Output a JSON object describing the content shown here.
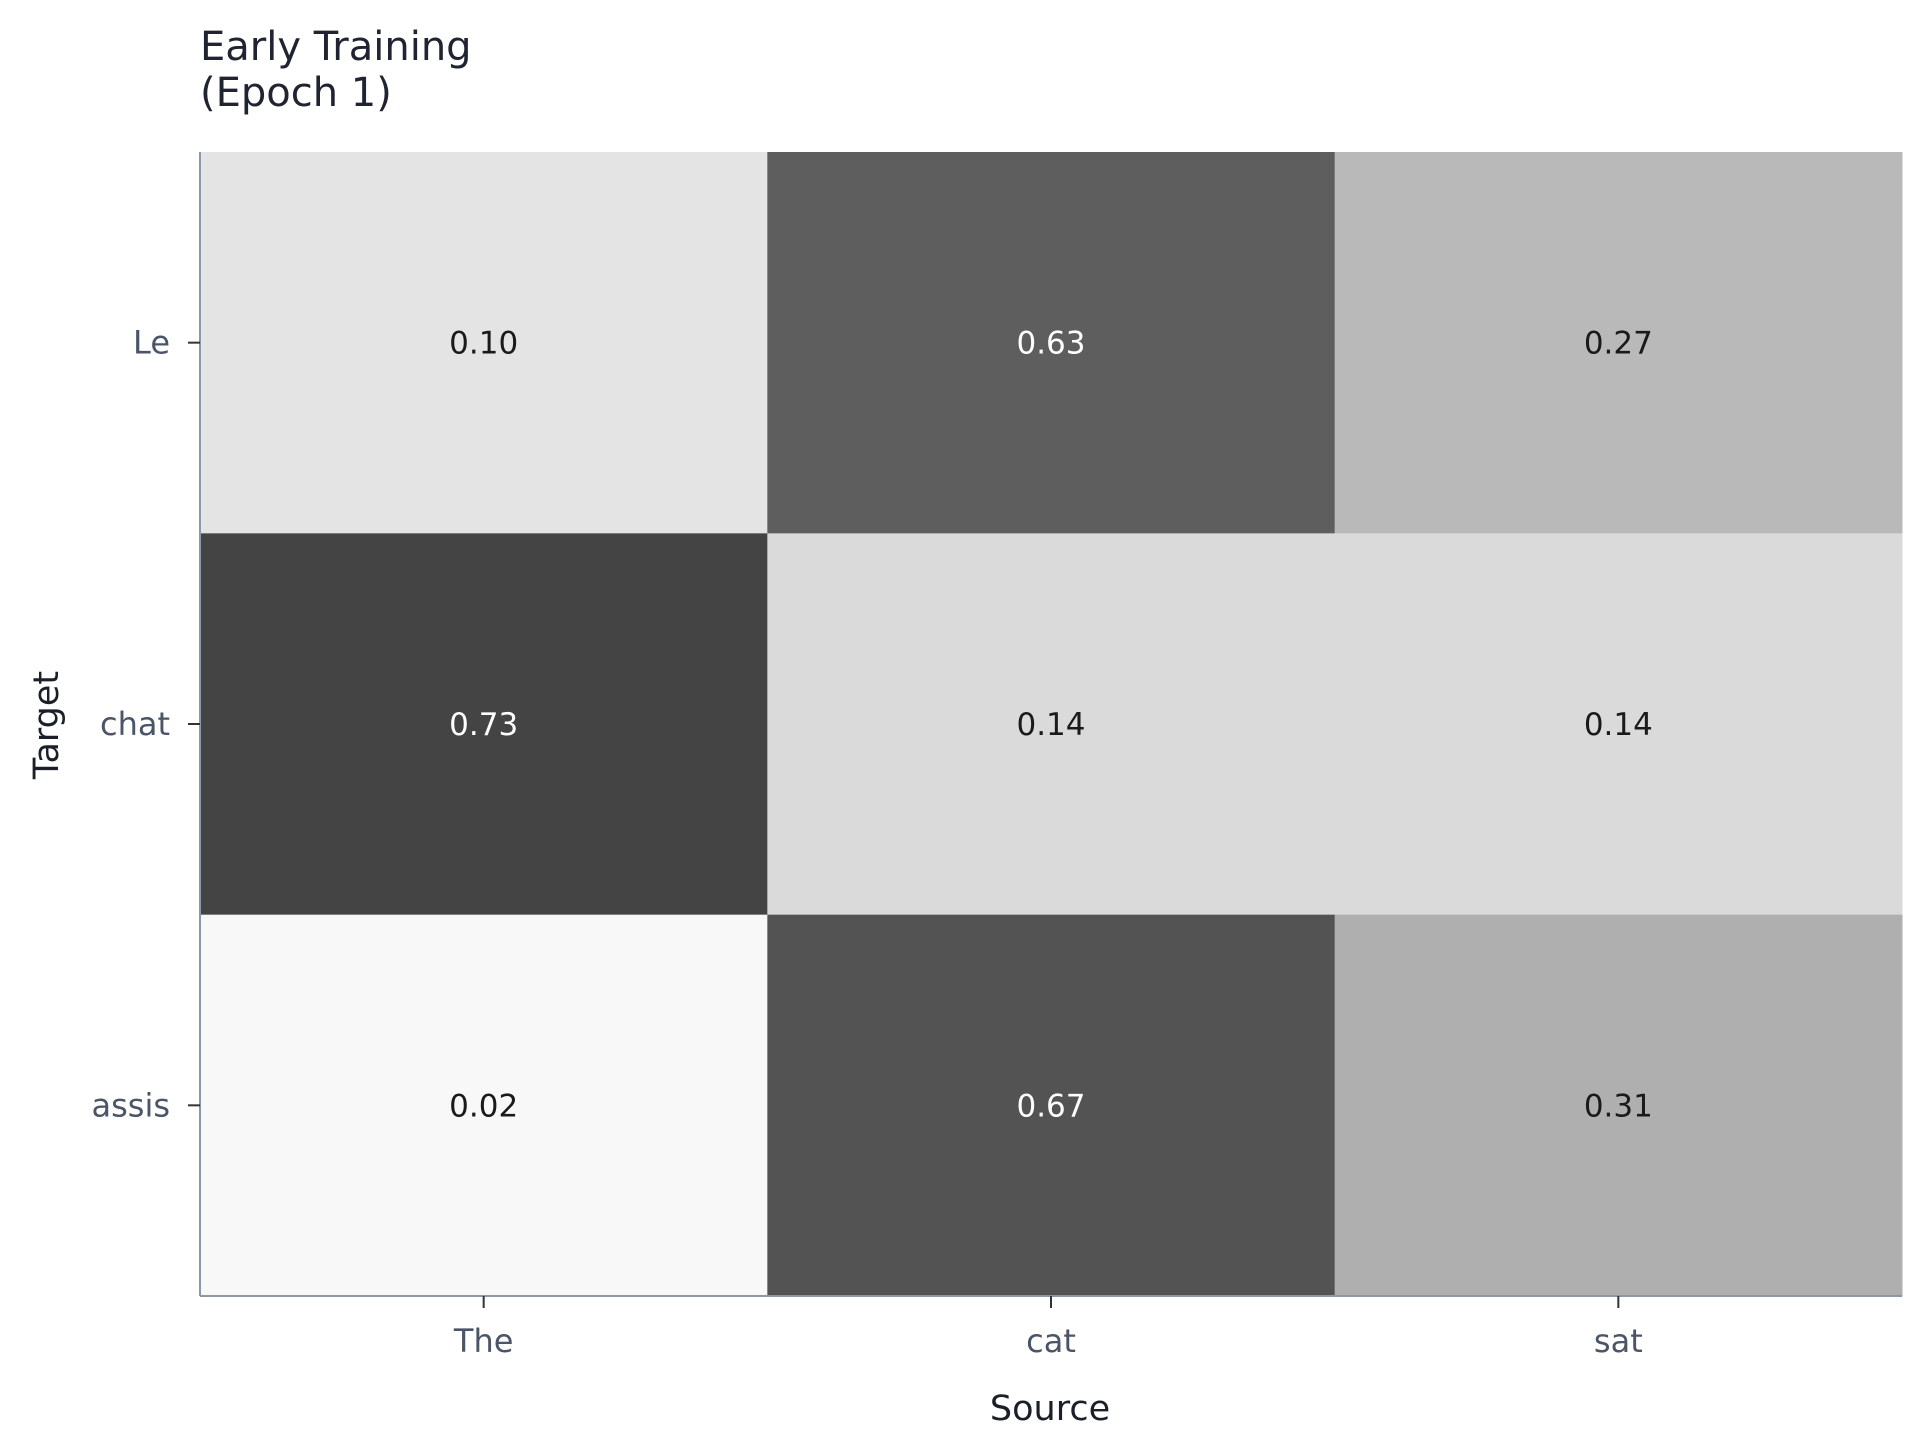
{
  "chart_data": {
    "type": "heatmap",
    "title": [
      "Early Training",
      "(Epoch 1)"
    ],
    "xlabel": "Source",
    "ylabel": "Target",
    "x_categories": [
      "The",
      "cat",
      "sat"
    ],
    "y_categories": [
      "Le",
      "chat",
      "assis"
    ],
    "values": [
      [
        0.1,
        0.63,
        0.27
      ],
      [
        0.73,
        0.14,
        0.14
      ],
      [
        0.02,
        0.67,
        0.31
      ]
    ],
    "value_labels": [
      [
        "0.10",
        "0.63",
        "0.27"
      ],
      [
        "0.73",
        "0.14",
        "0.14"
      ],
      [
        "0.02",
        "0.67",
        "0.31"
      ]
    ],
    "color_scale": {
      "low": "#fdfdfd",
      "high": "#000000",
      "domain": [
        0,
        1
      ]
    },
    "grid": false,
    "legend": "none"
  },
  "colors": {
    "axis": "#8c97a8",
    "tick_text": "#4b5568",
    "dark_text": "#1a1a1a",
    "light_text": "#ffffff"
  }
}
